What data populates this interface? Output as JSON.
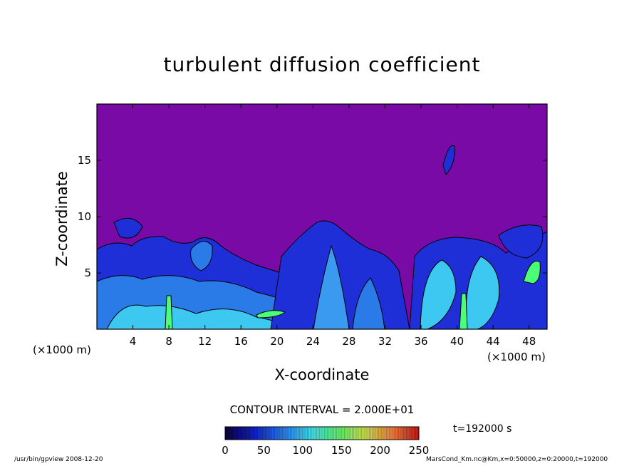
{
  "title": "turbulent diffusion coefficient",
  "x_unit_left": "(×1000 m)",
  "x_unit_right": "(×1000 m)",
  "contour_interval": "CONTOUR INTERVAL = 2.000E+01",
  "time_label": "t=192000 s",
  "footer_left": "/usr/bin/gpview   2008-12-20",
  "footer_right": "MarsCond_Km.nc@Km,x=0:50000,z=0:20000,t=192000",
  "colors": {
    "background_purple": "#7a0aa6",
    "low_blue": "#1f2fd8",
    "mid_cyan": "#3cc8f0",
    "high_green": "#4cff78"
  },
  "chart_data": {
    "type": "heatmap",
    "title": "turbulent diffusion coefficient",
    "xlabel": "X-coordinate",
    "ylabel": "Z-coordinate",
    "xlim": [
      0,
      50
    ],
    "ylim": [
      0,
      20
    ],
    "x_ticks": [
      4,
      8,
      12,
      16,
      20,
      24,
      28,
      32,
      36,
      40,
      44,
      48
    ],
    "y_ticks": [
      5,
      10,
      15
    ],
    "colorbar": {
      "range": [
        0,
        250
      ],
      "ticks": [
        0,
        50,
        100,
        150,
        200,
        250
      ],
      "interval": 20
    }
  }
}
